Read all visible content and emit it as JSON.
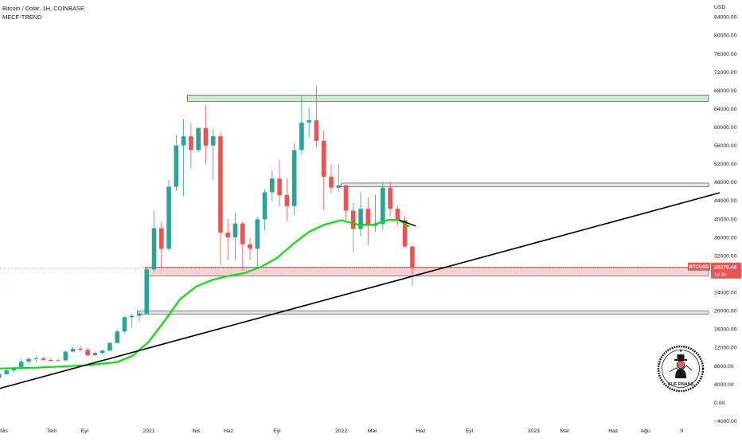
{
  "header": {
    "title": "Bitcoin / Dolar, 1H, COINBASE",
    "indicator": "MECF-TREND"
  },
  "price_tag": {
    "symbol": "BTCUSD",
    "value": "29270.46",
    "countdown": "1d 9h",
    "color": "#ef5350"
  },
  "logo": {
    "text": "ELİF FİNANS"
  },
  "colors": {
    "up": "#26a69a",
    "down": "#ef5350",
    "ma": "#00e600",
    "trendline": "#000000",
    "resistance_zone": "#c8e6c9",
    "support_zone": "#f8c8cc",
    "grey_zone": "#e0e0e0"
  },
  "chart_data": {
    "type": "candlestick",
    "title": "Bitcoin / Dolar, 1H, COINBASE",
    "y_unit": "USD",
    "ylim": [
      -4000,
      88000
    ],
    "y_ticks": [
      -4000,
      0,
      4000,
      8000,
      12000,
      16000,
      20000,
      24000,
      28000,
      32000,
      36000,
      40000,
      44000,
      48000,
      52000,
      56000,
      60000,
      64000,
      68000,
      72000,
      76000,
      80000,
      84000
    ],
    "y_tick_labels": [
      "−4000.00",
      "0.00",
      "4000.00",
      "8000.00",
      "12000.00",
      "16000.00",
      "20000.00",
      "24000.00",
      "28000.00",
      "32000.00",
      "36000.00",
      "40000.00",
      "44000.00",
      "48000.00",
      "52000.00",
      "56000.00",
      "60000.00",
      "64000.00",
      "68000.00",
      "72000.00",
      "76000.00",
      "80000.00",
      "84000.00"
    ],
    "xlim": [
      "2020-03-15",
      "2023-12-20"
    ],
    "x_ticks": [
      {
        "date": "2020-04-01",
        "label": "Nis"
      },
      {
        "date": "2020-07-01",
        "label": "Tem"
      },
      {
        "date": "2020-09-01",
        "label": "Eyl"
      },
      {
        "date": "2021-01-01",
        "label": "2021"
      },
      {
        "date": "2021-04-01",
        "label": "Nis"
      },
      {
        "date": "2021-06-01",
        "label": "Haz"
      },
      {
        "date": "2021-09-01",
        "label": "Eyl"
      },
      {
        "date": "2022-01-01",
        "label": "2022"
      },
      {
        "date": "2022-03-01",
        "label": "Mar"
      },
      {
        "date": "2022-06-01",
        "label": "Haz"
      },
      {
        "date": "2022-09-01",
        "label": "Eyl"
      },
      {
        "date": "2023-01-01",
        "label": "2023"
      },
      {
        "date": "2023-03-01",
        "label": "Mar"
      },
      {
        "date": "2023-06-01",
        "label": "Haz"
      },
      {
        "date": "2023-08-01",
        "label": "Ağu"
      },
      {
        "date": "2023-10-09",
        "label": "9"
      }
    ],
    "candles": [
      {
        "date": "2020-03-16",
        "o": 5400,
        "h": 6400,
        "l": 4600,
        "c": 6200
      },
      {
        "date": "2020-03-30",
        "o": 6200,
        "h": 7400,
        "l": 6000,
        "c": 7000
      },
      {
        "date": "2020-04-13",
        "o": 7000,
        "h": 7800,
        "l": 6600,
        "c": 7600
      },
      {
        "date": "2020-04-27",
        "o": 7600,
        "h": 9400,
        "l": 7400,
        "c": 8900
      },
      {
        "date": "2020-05-11",
        "o": 8900,
        "h": 9900,
        "l": 8300,
        "c": 9500
      },
      {
        "date": "2020-05-25",
        "o": 9500,
        "h": 10200,
        "l": 8800,
        "c": 9600
      },
      {
        "date": "2020-06-08",
        "o": 9600,
        "h": 10000,
        "l": 9100,
        "c": 9300
      },
      {
        "date": "2020-06-22",
        "o": 9300,
        "h": 9700,
        "l": 8900,
        "c": 9100
      },
      {
        "date": "2020-07-06",
        "o": 9100,
        "h": 9500,
        "l": 9000,
        "c": 9200
      },
      {
        "date": "2020-07-20",
        "o": 9200,
        "h": 11400,
        "l": 9100,
        "c": 11100
      },
      {
        "date": "2020-08-03",
        "o": 11100,
        "h": 12100,
        "l": 11000,
        "c": 11700
      },
      {
        "date": "2020-08-17",
        "o": 11700,
        "h": 12400,
        "l": 11100,
        "c": 11500
      },
      {
        "date": "2020-08-31",
        "o": 11500,
        "h": 12000,
        "l": 9900,
        "c": 10300
      },
      {
        "date": "2020-09-14",
        "o": 10300,
        "h": 11100,
        "l": 10200,
        "c": 10800
      },
      {
        "date": "2020-09-28",
        "o": 10800,
        "h": 11500,
        "l": 10500,
        "c": 11300
      },
      {
        "date": "2020-10-12",
        "o": 11300,
        "h": 13200,
        "l": 11200,
        "c": 13000
      },
      {
        "date": "2020-10-26",
        "o": 13000,
        "h": 15900,
        "l": 12900,
        "c": 15500
      },
      {
        "date": "2020-11-09",
        "o": 15500,
        "h": 18800,
        "l": 15200,
        "c": 18600
      },
      {
        "date": "2020-11-23",
        "o": 18600,
        "h": 19400,
        "l": 16300,
        "c": 18900
      },
      {
        "date": "2020-12-07",
        "o": 18900,
        "h": 19900,
        "l": 17600,
        "c": 19400
      },
      {
        "date": "2020-12-21",
        "o": 19400,
        "h": 29300,
        "l": 19000,
        "c": 29000
      },
      {
        "date": "2021-01-04",
        "o": 29000,
        "h": 41900,
        "l": 28500,
        "c": 38000
      },
      {
        "date": "2021-01-18",
        "o": 38000,
        "h": 39500,
        "l": 29000,
        "c": 33500
      },
      {
        "date": "2021-02-01",
        "o": 33500,
        "h": 48500,
        "l": 33000,
        "c": 47000
      },
      {
        "date": "2021-02-15",
        "o": 47000,
        "h": 58300,
        "l": 46000,
        "c": 56000
      },
      {
        "date": "2021-03-01",
        "o": 56000,
        "h": 61700,
        "l": 44900,
        "c": 58000
      },
      {
        "date": "2021-03-15",
        "o": 58000,
        "h": 61000,
        "l": 51000,
        "c": 55000
      },
      {
        "date": "2021-03-29",
        "o": 55000,
        "h": 60000,
        "l": 54500,
        "c": 59800
      },
      {
        "date": "2021-04-12",
        "o": 59800,
        "h": 64800,
        "l": 52000,
        "c": 56000
      },
      {
        "date": "2021-04-26",
        "o": 56000,
        "h": 59500,
        "l": 48500,
        "c": 58000
      },
      {
        "date": "2021-05-10",
        "o": 58000,
        "h": 59000,
        "l": 30000,
        "c": 37000
      },
      {
        "date": "2021-05-24",
        "o": 37000,
        "h": 40000,
        "l": 31000,
        "c": 36000
      },
      {
        "date": "2021-06-07",
        "o": 36000,
        "h": 41300,
        "l": 31000,
        "c": 39000
      },
      {
        "date": "2021-06-21",
        "o": 39000,
        "h": 39500,
        "l": 28800,
        "c": 34500
      },
      {
        "date": "2021-07-05",
        "o": 34500,
        "h": 35900,
        "l": 31000,
        "c": 33500
      },
      {
        "date": "2021-07-19",
        "o": 33500,
        "h": 40500,
        "l": 29300,
        "c": 39900
      },
      {
        "date": "2021-08-02",
        "o": 39900,
        "h": 46500,
        "l": 37500,
        "c": 45800
      },
      {
        "date": "2021-08-16",
        "o": 45800,
        "h": 50500,
        "l": 43800,
        "c": 48800
      },
      {
        "date": "2021-08-30",
        "o": 48800,
        "h": 52900,
        "l": 42800,
        "c": 45200
      },
      {
        "date": "2021-09-13",
        "o": 45200,
        "h": 48800,
        "l": 39600,
        "c": 42800
      },
      {
        "date": "2021-09-27",
        "o": 42800,
        "h": 56500,
        "l": 40800,
        "c": 55000
      },
      {
        "date": "2021-10-11",
        "o": 55000,
        "h": 67000,
        "l": 54000,
        "c": 61000
      },
      {
        "date": "2021-10-25",
        "o": 61000,
        "h": 64200,
        "l": 57800,
        "c": 61500
      },
      {
        "date": "2021-11-08",
        "o": 61500,
        "h": 69000,
        "l": 55600,
        "c": 57000
      },
      {
        "date": "2021-11-22",
        "o": 57000,
        "h": 59300,
        "l": 42000,
        "c": 49200
      },
      {
        "date": "2021-12-06",
        "o": 49200,
        "h": 51900,
        "l": 45600,
        "c": 46800
      },
      {
        "date": "2021-12-20",
        "o": 46800,
        "h": 52000,
        "l": 45800,
        "c": 47300
      },
      {
        "date": "2022-01-03",
        "o": 47300,
        "h": 47500,
        "l": 39600,
        "c": 41800
      },
      {
        "date": "2022-01-17",
        "o": 41800,
        "h": 43500,
        "l": 32900,
        "c": 37800
      },
      {
        "date": "2022-01-31",
        "o": 37800,
        "h": 45800,
        "l": 36200,
        "c": 42200
      },
      {
        "date": "2022-02-14",
        "o": 42200,
        "h": 44700,
        "l": 34300,
        "c": 38500
      },
      {
        "date": "2022-02-28",
        "o": 38500,
        "h": 45300,
        "l": 37200,
        "c": 38900
      },
      {
        "date": "2022-03-14",
        "o": 38900,
        "h": 48100,
        "l": 37600,
        "c": 46800
      },
      {
        "date": "2022-03-28",
        "o": 46800,
        "h": 48200,
        "l": 40500,
        "c": 42200
      },
      {
        "date": "2022-04-11",
        "o": 42200,
        "h": 42900,
        "l": 38600,
        "c": 39700
      },
      {
        "date": "2022-04-25",
        "o": 39700,
        "h": 40700,
        "l": 33700,
        "c": 34000
      },
      {
        "date": "2022-05-09",
        "o": 34000,
        "h": 34300,
        "l": 25400,
        "c": 29270
      }
    ],
    "moving_average": {
      "name": "MECF-TREND",
      "points": [
        {
          "date": "2020-03-15",
          "value": 7400
        },
        {
          "date": "2020-06-01",
          "value": 7600
        },
        {
          "date": "2020-09-01",
          "value": 8100
        },
        {
          "date": "2020-11-01",
          "value": 8800
        },
        {
          "date": "2020-12-01",
          "value": 10200
        },
        {
          "date": "2021-01-01",
          "value": 13300
        },
        {
          "date": "2021-02-01",
          "value": 18000
        },
        {
          "date": "2021-03-01",
          "value": 22500
        },
        {
          "date": "2021-04-01",
          "value": 25300
        },
        {
          "date": "2021-05-01",
          "value": 26700
        },
        {
          "date": "2021-06-01",
          "value": 27600
        },
        {
          "date": "2021-07-01",
          "value": 28200
        },
        {
          "date": "2021-08-01",
          "value": 29500
        },
        {
          "date": "2021-09-01",
          "value": 31500
        },
        {
          "date": "2021-10-01",
          "value": 34500
        },
        {
          "date": "2021-11-01",
          "value": 37200
        },
        {
          "date": "2021-12-01",
          "value": 38800
        },
        {
          "date": "2022-01-01",
          "value": 39700
        },
        {
          "date": "2022-02-01",
          "value": 38800
        },
        {
          "date": "2022-03-01",
          "value": 38700
        },
        {
          "date": "2022-04-01",
          "value": 39800
        },
        {
          "date": "2022-04-20",
          "value": 39800
        },
        {
          "date": "2022-05-10",
          "value": 38300
        }
      ]
    },
    "trendline": [
      {
        "date": "2020-03-15",
        "value": 2800
      },
      {
        "date": "2023-12-20",
        "value": 45700
      }
    ],
    "zones": [
      {
        "kind": "resistance",
        "color": "#c8e6c9",
        "from": "2021-03-15",
        "to": "2023-12-20",
        "low": 65600,
        "high": 67000
      },
      {
        "kind": "grey",
        "color": "#e0e0e0",
        "from": "2022-01-01",
        "to": "2023-12-20",
        "low": 47000,
        "high": 47800
      },
      {
        "kind": "support",
        "color": "#f8c8cc",
        "from": "2020-12-25",
        "to": "2023-12-20",
        "low": 27600,
        "high": 29500
      },
      {
        "kind": "grey",
        "color": "#e0e0e0",
        "from": "2020-12-10",
        "to": "2023-12-20",
        "low": 19300,
        "high": 20000
      }
    ],
    "current_price": 29270.46,
    "grid": false,
    "legend": "top-left"
  }
}
